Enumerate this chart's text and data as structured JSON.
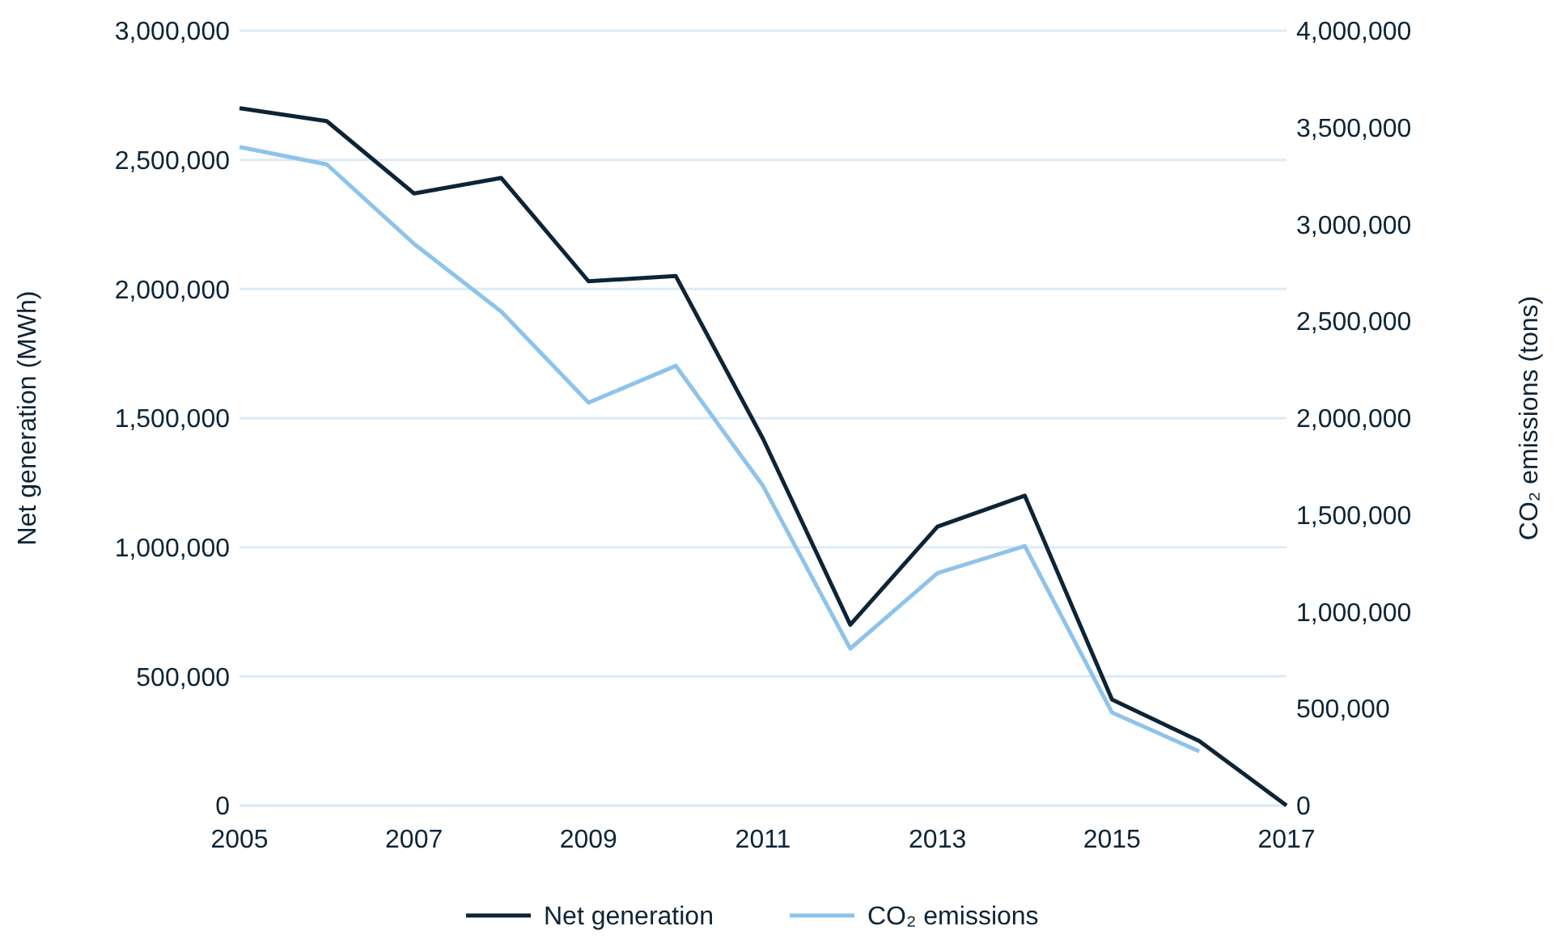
{
  "chart_data": {
    "type": "line",
    "x": [
      2005,
      2006,
      2007,
      2008,
      2009,
      2010,
      2011,
      2012,
      2013,
      2014,
      2015,
      2016,
      2017
    ],
    "ylabel": "Net generation (MWh)",
    "y2label": "CO₂ emissions (tons)",
    "xlim": [
      2005,
      2017
    ],
    "xticks": [
      2005,
      2007,
      2009,
      2011,
      2013,
      2015,
      2017
    ],
    "ylim": [
      0,
      3000000
    ],
    "yticks": [
      {
        "value": 0,
        "label": "0"
      },
      {
        "value": 500000,
        "label": "500,000"
      },
      {
        "value": 1000000,
        "label": "1,000,000"
      },
      {
        "value": 1500000,
        "label": "1,500,000"
      },
      {
        "value": 2000000,
        "label": "2,000,000"
      },
      {
        "value": 2500000,
        "label": "2,500,000"
      },
      {
        "value": 3000000,
        "label": "3,000,000"
      }
    ],
    "y2lim": [
      0,
      4000000
    ],
    "y2ticks": [
      {
        "value": 0,
        "label": "0"
      },
      {
        "value": 500000,
        "label": "500,000"
      },
      {
        "value": 1000000,
        "label": "1,000,000"
      },
      {
        "value": 1500000,
        "label": "1,500,000"
      },
      {
        "value": 2000000,
        "label": "2,000,000"
      },
      {
        "value": 2500000,
        "label": "2,500,000"
      },
      {
        "value": 3000000,
        "label": "3,000,000"
      },
      {
        "value": 3500000,
        "label": "3,500,000"
      },
      {
        "value": 4000000,
        "label": "4,000,000"
      }
    ],
    "grid": "y",
    "legend": "bottom",
    "marker": "none",
    "line_style": "solid",
    "series": [
      {
        "name": "Net generation",
        "color": "#0d2436",
        "values": [
          2700000,
          2650000,
          2370000,
          2430000,
          2030000,
          2050000,
          1420000,
          700000,
          1080000,
          1200000,
          410000,
          250000,
          0
        ]
      },
      {
        "name": "CO₂ emissions",
        "color": "#8ec3ea",
        "axis": "y2",
        "values": [
          3400000,
          3310000,
          2900000,
          2550000,
          2080000,
          2270000,
          1650000,
          810000,
          1200000,
          1340000,
          480000,
          280000,
          null
        ]
      }
    ]
  }
}
